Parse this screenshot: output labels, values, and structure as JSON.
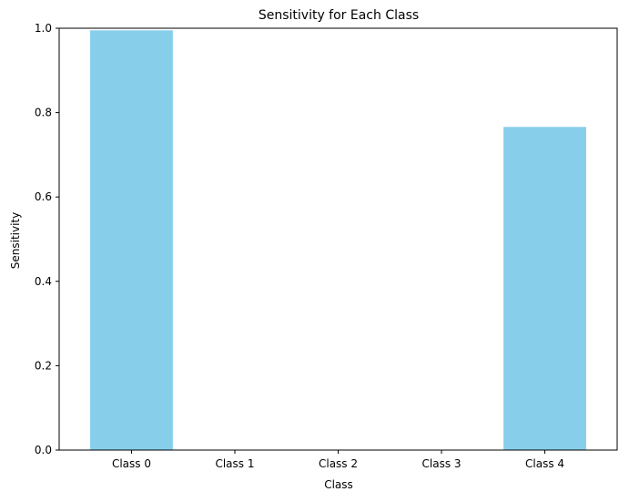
{
  "chart_data": {
    "type": "bar",
    "title": "Sensitivity for Each Class",
    "xlabel": "Class",
    "ylabel": "Sensitivity",
    "categories": [
      "Class 0",
      "Class 1",
      "Class 2",
      "Class 3",
      "Class 4"
    ],
    "values": [
      0.995,
      0.0,
      0.0,
      0.0,
      0.766
    ],
    "ylim": [
      0,
      1.0
    ],
    "yticks": [
      0.0,
      0.2,
      0.4,
      0.6,
      0.8,
      1.0
    ],
    "ytick_labels": [
      "0.0",
      "0.2",
      "0.4",
      "0.6",
      "0.8",
      "1.0"
    ],
    "grid": false,
    "legend": "none",
    "bar_color": "#87ceeb"
  }
}
